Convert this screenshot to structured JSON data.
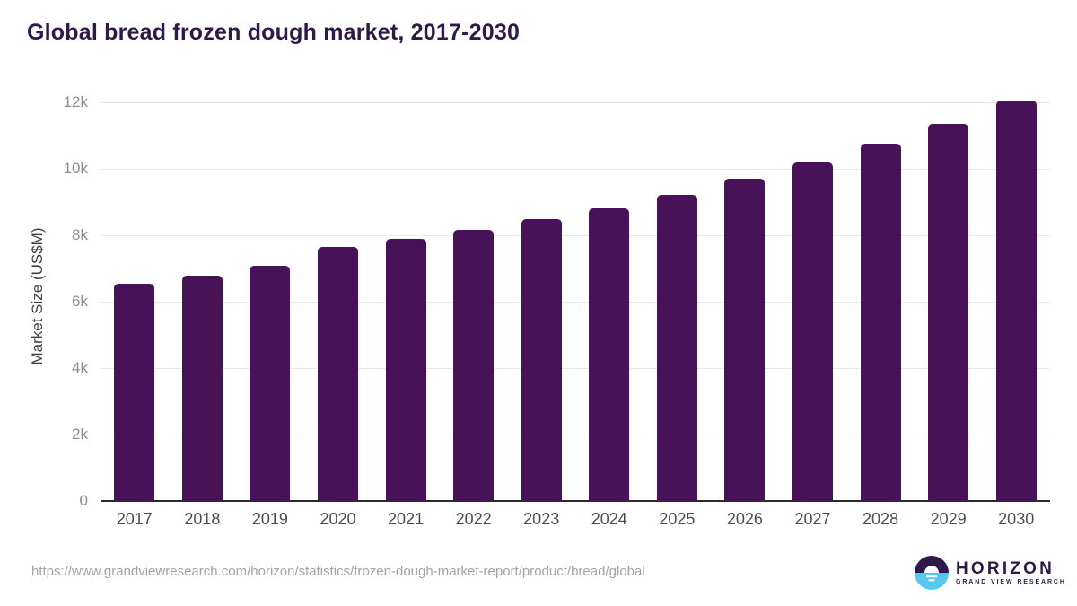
{
  "title": "Global bread frozen dough market, 2017-2030",
  "chart_data": {
    "type": "bar",
    "title": "Global bread frozen dough market, 2017-2030",
    "xlabel": "",
    "ylabel": "Market Size (US$M)",
    "categories": [
      "2017",
      "2018",
      "2019",
      "2020",
      "2021",
      "2022",
      "2023",
      "2024",
      "2025",
      "2026",
      "2027",
      "2028",
      "2029",
      "2030"
    ],
    "values": [
      6550,
      6790,
      7090,
      7660,
      7890,
      8170,
      8480,
      8820,
      9220,
      9700,
      10200,
      10750,
      11360,
      12060
    ],
    "ylim": [
      0,
      12000
    ],
    "yticks": [
      {
        "value": 0,
        "label": "0"
      },
      {
        "value": 2000,
        "label": "2k"
      },
      {
        "value": 4000,
        "label": "4k"
      },
      {
        "value": 6000,
        "label": "6k"
      },
      {
        "value": 8000,
        "label": "8k"
      },
      {
        "value": 10000,
        "label": "10k"
      },
      {
        "value": 12000,
        "label": "12k"
      }
    ],
    "grid": true,
    "legend": "none",
    "bar_color": "#481258"
  },
  "footer": {
    "source_url": "https://www.grandviewresearch.com/horizon/statistics/frozen-dough-market-report/product/bread/global",
    "logo": {
      "brand": "HORIZON",
      "sub_brand": "GRAND VIEW RESEARCH",
      "icon": "horizon-sun-icon",
      "icon_top_color": "#2e1a47",
      "icon_bottom_color": "#58c7f0"
    }
  },
  "colors": {
    "title": "#2e1a47",
    "bar": "#481258",
    "gridline": "#e8e8e8",
    "axis_line": "#2b2b2b",
    "y_tick_label": "#8c8c8c",
    "x_tick_label": "#4d4d4d",
    "url_text": "#a3a3a3",
    "background": "#ffffff"
  }
}
